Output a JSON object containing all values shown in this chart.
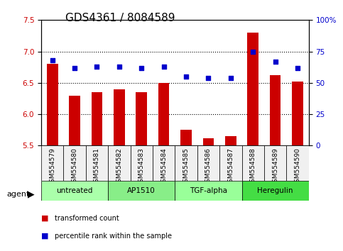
{
  "title": "GDS4361 / 8084589",
  "samples": [
    "GSM554579",
    "GSM554580",
    "GSM554581",
    "GSM554582",
    "GSM554583",
    "GSM554584",
    "GSM554585",
    "GSM554586",
    "GSM554587",
    "GSM554588",
    "GSM554589",
    "GSM554590"
  ],
  "bar_values": [
    6.8,
    6.3,
    6.35,
    6.4,
    6.35,
    6.5,
    5.75,
    5.62,
    5.65,
    7.3,
    6.62,
    6.52
  ],
  "scatter_values": [
    68,
    62,
    63,
    63,
    62,
    63,
    55,
    54,
    54,
    75,
    67,
    62
  ],
  "bar_color": "#cc0000",
  "scatter_color": "#0000cc",
  "ylim_left": [
    5.5,
    7.5
  ],
  "ylim_right": [
    0,
    100
  ],
  "yticks_left": [
    5.5,
    6.0,
    6.5,
    7.0,
    7.5
  ],
  "yticks_right": [
    0,
    25,
    50,
    75,
    100
  ],
  "ytick_labels_right": [
    "0",
    "25",
    "50",
    "75",
    "100%"
  ],
  "grid_values": [
    6.0,
    6.5,
    7.0
  ],
  "agents": [
    {
      "label": "untreated",
      "start": 0,
      "end": 3,
      "color": "#aaffaa"
    },
    {
      "label": "AP1510",
      "start": 3,
      "end": 6,
      "color": "#88ee88"
    },
    {
      "label": "TGF-alpha",
      "start": 6,
      "end": 9,
      "color": "#99ff99"
    },
    {
      "label": "Heregulin",
      "start": 9,
      "end": 12,
      "color": "#44dd44"
    }
  ],
  "legend_bar_label": "transformed count",
  "legend_scatter_label": "percentile rank within the sample",
  "agent_label": "agent",
  "title_fontsize": 11,
  "axis_fontsize": 8,
  "tick_fontsize": 7.5,
  "bg_color": "#f0f0f0"
}
